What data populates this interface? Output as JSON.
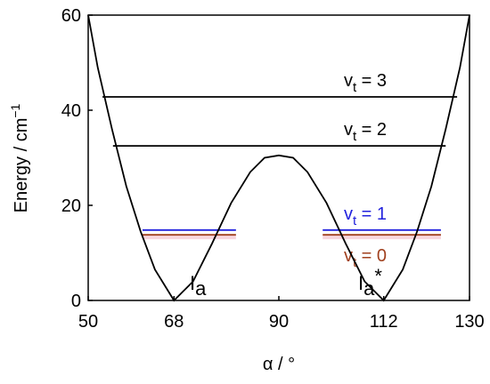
{
  "chart_data": {
    "type": "line",
    "x_label": "α / °",
    "y_label": {
      "text": "Energy / cm",
      "sup": "−1"
    },
    "xlim": [
      50,
      130
    ],
    "xticks": [
      50,
      68,
      90,
      112,
      130
    ],
    "ylim": [
      0,
      60
    ],
    "yticks": [
      0,
      20,
      40,
      60
    ],
    "series": [
      {
        "color": "#000000",
        "x": [
          50,
          52,
          55,
          58,
          61,
          64,
          68,
          72,
          76,
          80,
          84,
          87,
          90,
          93,
          96,
          100,
          104,
          108,
          112,
          116,
          119,
          122,
          125,
          128,
          130
        ],
        "values": [
          60,
          49,
          36,
          24,
          14.5,
          6.5,
          0,
          4,
          12,
          20.5,
          27,
          30,
          30.5,
          30,
          27,
          20.5,
          12,
          4,
          0,
          6.5,
          14.5,
          24,
          36,
          49,
          60
        ]
      }
    ],
    "levels": [
      {
        "label": {
          "text": "v",
          "sub": "t",
          "rest": " = 3"
        },
        "color": "#000000",
        "value": 42.8,
        "segments": [
          [
            53,
            127.4
          ]
        ]
      },
      {
        "label": {
          "text": "v",
          "sub": "t",
          "rest": " = 2"
        },
        "color": "#000000",
        "value": 32.5,
        "segments": [
          [
            55.2,
            125
          ]
        ]
      },
      {
        "label": {
          "text": "v",
          "sub": "t",
          "rest": " = 1"
        },
        "color": "#2222dd",
        "value": 14.8,
        "segments": [
          [
            61.4,
            81
          ],
          [
            99.2,
            124
          ]
        ]
      },
      {
        "label": {
          "text": "v",
          "sub": "t",
          "rest": " = 0"
        },
        "color": "#a0401e",
        "value": 13.8,
        "segments": [
          [
            61.4,
            81
          ],
          [
            99.2,
            124
          ]
        ]
      }
    ],
    "wells": [
      {
        "text": "I",
        "sub": "a",
        "suffix": ""
      },
      {
        "text": "I",
        "sub": "a",
        "suffix": "*"
      }
    ]
  }
}
